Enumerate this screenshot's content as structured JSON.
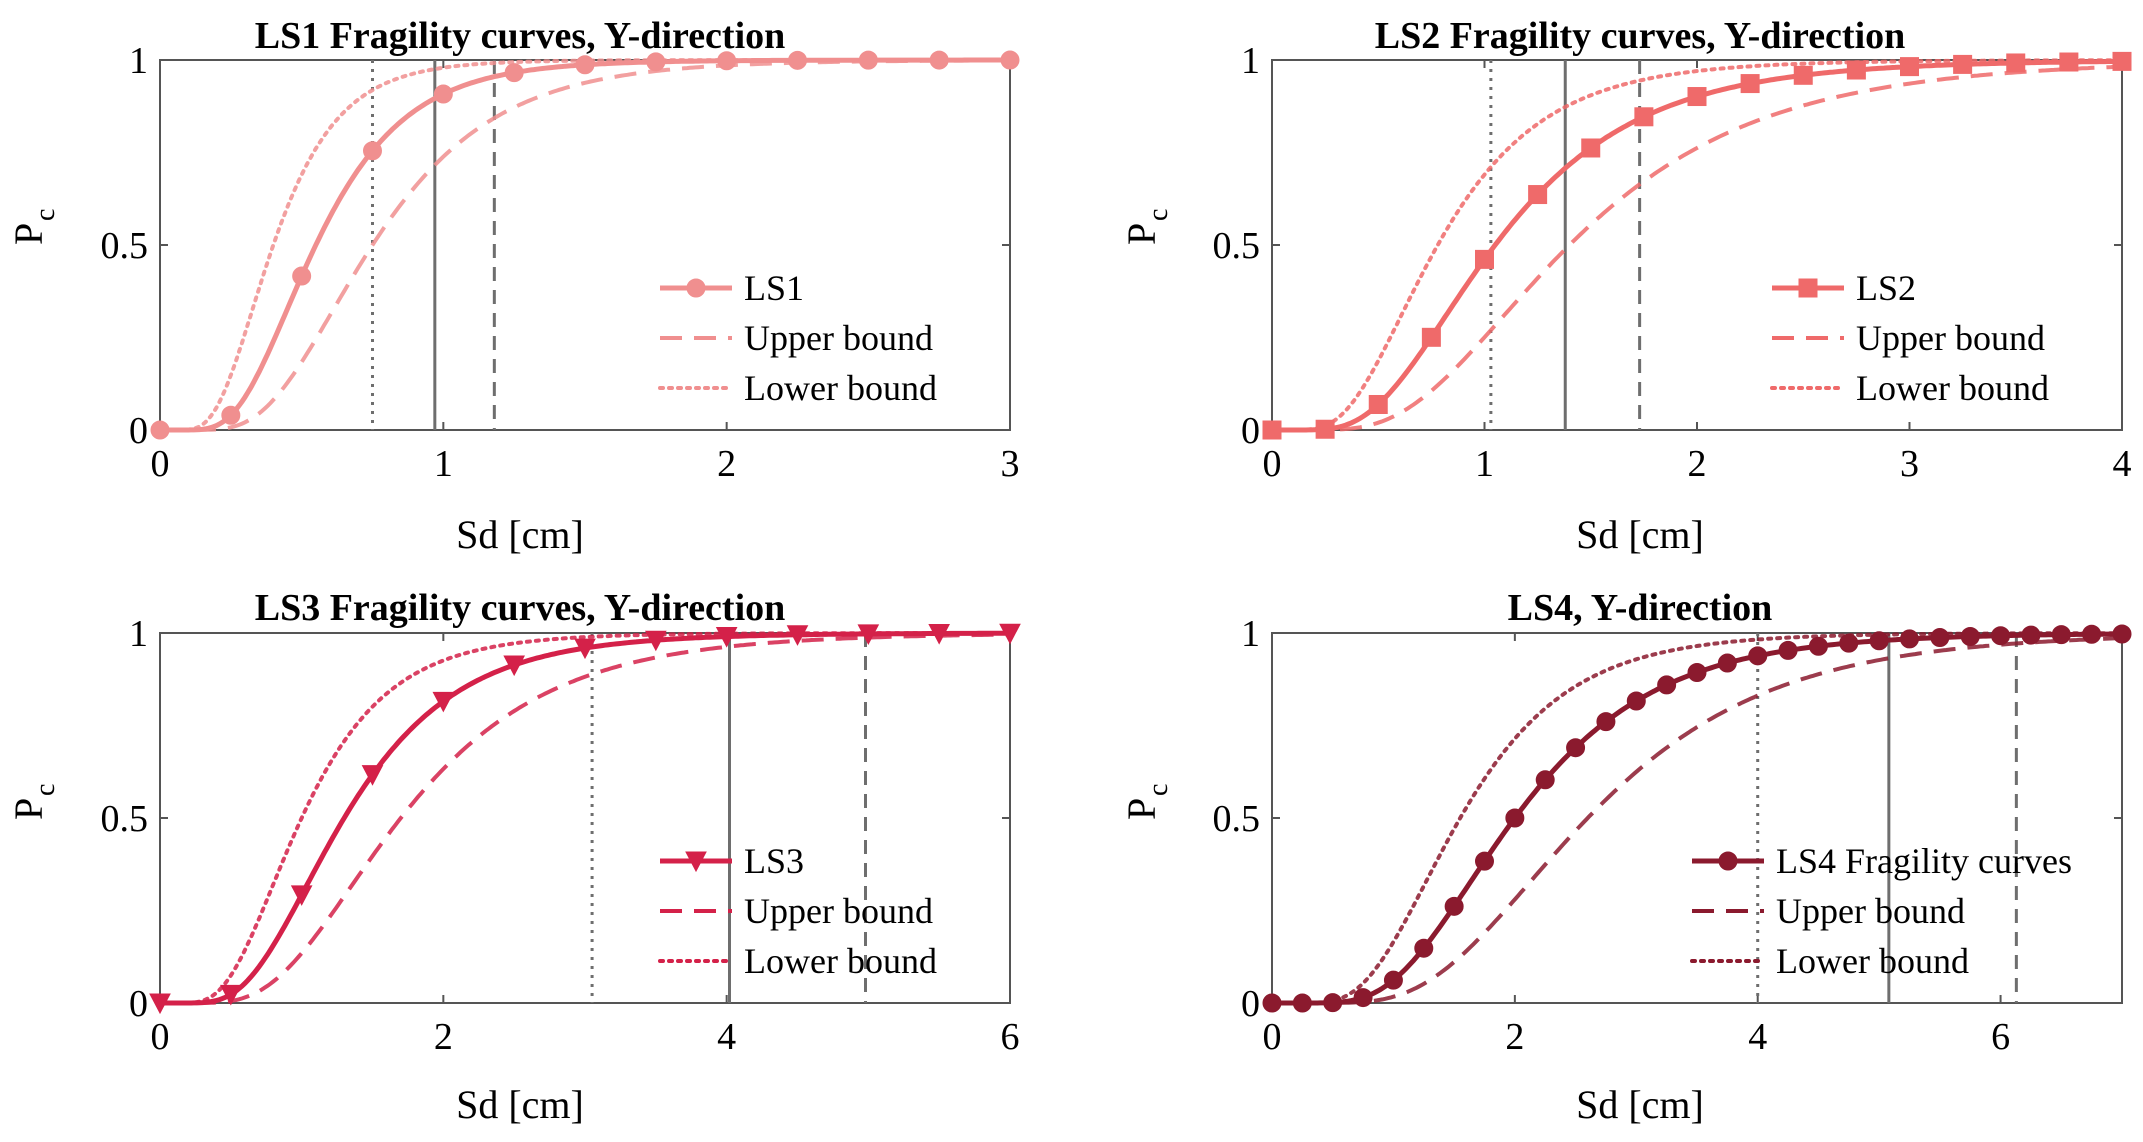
{
  "figure": {
    "background": "#ffffff",
    "axis_color": "#555555"
  },
  "chart_data": [
    {
      "type": "line",
      "title": "LS1 Fragility curves, Y-direction",
      "xlabel": "Sd [cm]",
      "ylabel_main": "P",
      "ylabel_sub": "c",
      "xlim": [
        0,
        3
      ],
      "ylim": [
        0,
        1
      ],
      "xticks": [
        "0",
        "1",
        "2",
        "3"
      ],
      "yticks": [
        "0",
        "0.5",
        "1"
      ],
      "color": "#f08f8f",
      "marker": "circle",
      "lognormal": {
        "median": 0.55,
        "beta": 0.45,
        "upper_median": 0.75,
        "lower_median": 0.4
      },
      "x": [
        0,
        0.25,
        0.5,
        0.75,
        1.0,
        1.25,
        1.5,
        1.75,
        2.0,
        2.25,
        2.5,
        2.75,
        3.0
      ],
      "vlines": {
        "dotted": 0.75,
        "solid": 0.97,
        "dashed": 1.18
      },
      "legend": [
        "LS1",
        "Upper bound",
        "Lower bound"
      ]
    },
    {
      "type": "line",
      "title": "LS2 Fragility curves, Y-direction",
      "xlabel": "Sd [cm]",
      "ylabel_main": "P",
      "ylabel_sub": "c",
      "xlim": [
        0,
        4
      ],
      "ylim": [
        0,
        1
      ],
      "xticks": [
        "0",
        "1",
        "2",
        "3",
        "4"
      ],
      "yticks": [
        "0",
        "0.5",
        "1"
      ],
      "color": "#ef6a6a",
      "marker": "square",
      "lognormal": {
        "median": 1.05,
        "beta": 0.5,
        "upper_median": 1.4,
        "lower_median": 0.78
      },
      "x": [
        0,
        0.25,
        0.5,
        0.75,
        1.0,
        1.25,
        1.5,
        1.75,
        2.0,
        2.25,
        2.5,
        2.75,
        3.0,
        3.25,
        3.5,
        3.75,
        4.0
      ],
      "vlines": {
        "dotted": 1.03,
        "solid": 1.38,
        "dashed": 1.73
      },
      "legend": [
        "LS2",
        "Upper bound",
        "Lower bound"
      ]
    },
    {
      "type": "line",
      "title": "LS3 Fragility curves, Y-direction",
      "xlabel": "Sd [cm]",
      "ylabel_main": "P",
      "ylabel_sub": "c",
      "xlim": [
        0,
        6
      ],
      "ylim": [
        0,
        1
      ],
      "xticks": [
        "0",
        "2",
        "4",
        "6"
      ],
      "yticks": [
        "0",
        "0.5",
        "1"
      ],
      "color": "#d42149",
      "marker": "triangle-down",
      "lognormal": {
        "median": 1.3,
        "beta": 0.48,
        "upper_median": 1.7,
        "lower_median": 1.0
      },
      "x": [
        0,
        0.5,
        1.0,
        1.5,
        2.0,
        2.5,
        3.0,
        3.5,
        4.0,
        4.5,
        5.0,
        5.5,
        6.0
      ],
      "vlines": {
        "dotted": 3.05,
        "solid": 4.02,
        "dashed": 4.98
      },
      "legend": [
        "LS3",
        "Upper bound",
        "Lower bound"
      ]
    },
    {
      "type": "line",
      "title": "LS4, Y-direction",
      "xlabel": "Sd [cm]",
      "ylabel_main": "P",
      "ylabel_sub": "c",
      "xlim": [
        0,
        7
      ],
      "ylim": [
        0,
        1
      ],
      "xticks": [
        "0",
        "2",
        "4",
        "6"
      ],
      "yticks": [
        "0",
        "0.5",
        "1"
      ],
      "color": "#8b1a2e",
      "marker": "circle",
      "lognormal": {
        "median": 2.0,
        "beta": 0.45,
        "upper_median": 2.6,
        "lower_median": 1.55
      },
      "x": [
        0,
        0.25,
        0.5,
        0.75,
        1.0,
        1.25,
        1.5,
        1.75,
        2.0,
        2.25,
        2.5,
        2.75,
        3.0,
        3.25,
        3.5,
        3.75,
        4.0,
        4.25,
        4.5,
        4.75,
        5.0,
        5.25,
        5.5,
        5.75,
        6.0,
        6.25,
        6.5,
        6.75,
        7.0
      ],
      "vlines": {
        "dotted": 4.0,
        "solid": 5.08,
        "dashed": 6.13
      },
      "legend": [
        "LS4 Fragility curves",
        "Upper bound",
        "Lower bound"
      ]
    }
  ]
}
